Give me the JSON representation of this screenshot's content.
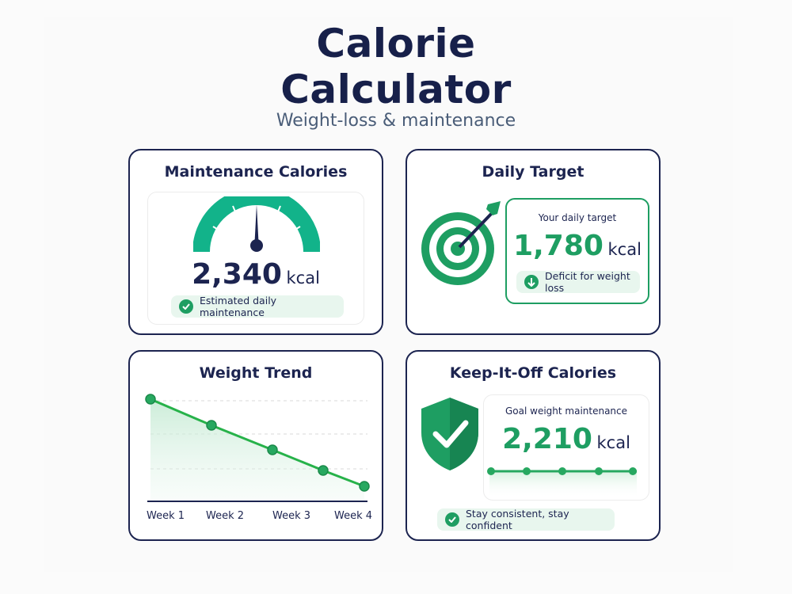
{
  "header": {
    "title_line1": "Calorie",
    "title_line2": "Calculator",
    "subtitle": "Weight-loss & maintenance"
  },
  "maintenance": {
    "title": "Maintenance Calories",
    "value": "2,340",
    "unit": "kcal",
    "note": "Estimated daily maintenance"
  },
  "target": {
    "title": "Daily Target",
    "label": "Your daily target",
    "value": "1,780",
    "unit": "kcal",
    "note": "Deficit for weight loss"
  },
  "trend": {
    "title": "Weight Trend",
    "weeks": [
      "Week 1",
      "Week 2",
      "Week 3",
      "Week 4"
    ]
  },
  "keep_off": {
    "title": "Keep-It-Off Calories",
    "label": "Goal weight maintenance",
    "value": "2,210",
    "unit": "kcal",
    "note": "Stay consistent, stay confident"
  },
  "colors": {
    "navy": "#1c2450",
    "green": "#1e9e62",
    "light_green": "#e8f6ee",
    "teal": "#12b38a"
  },
  "icons": [
    "gauge-icon",
    "check-icon",
    "target-icon",
    "arrow-down-icon",
    "shield-icon"
  ]
}
